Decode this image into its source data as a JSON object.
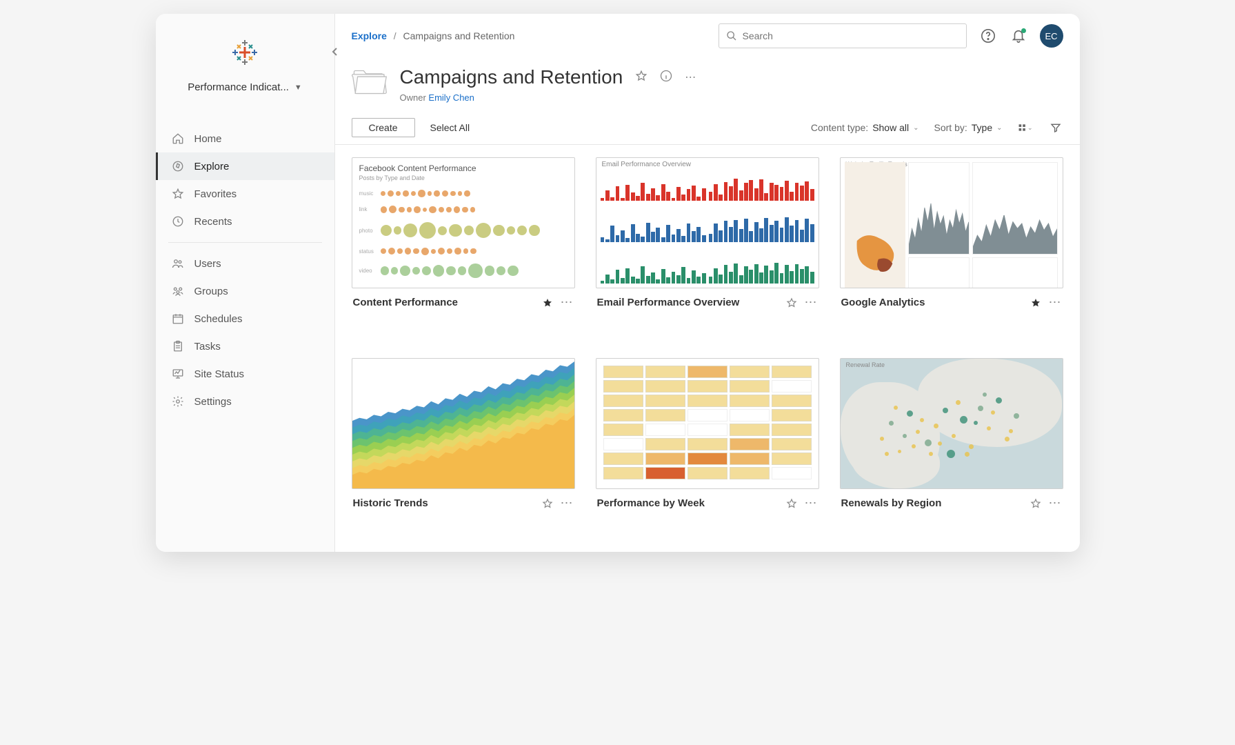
{
  "sidebar": {
    "project_label": "Performance Indicat...",
    "nav": [
      {
        "label": "Home"
      },
      {
        "label": "Explore"
      },
      {
        "label": "Favorites"
      },
      {
        "label": "Recents"
      }
    ],
    "admin": [
      {
        "label": "Users"
      },
      {
        "label": "Groups"
      },
      {
        "label": "Schedules"
      },
      {
        "label": "Tasks"
      },
      {
        "label": "Site Status"
      },
      {
        "label": "Settings"
      }
    ]
  },
  "topbar": {
    "breadcrumb_root": "Explore",
    "breadcrumb_current": "Campaigns and Retention",
    "search_placeholder": "Search",
    "avatar_initials": "EC"
  },
  "header": {
    "title": "Campaigns and Retention",
    "owner_label": "Owner",
    "owner_name": "Emily Chen"
  },
  "toolbar": {
    "create_label": "Create",
    "select_all_label": "Select All",
    "content_type_label": "Content type:",
    "content_type_value": "Show all",
    "sort_by_label": "Sort by:",
    "sort_by_value": "Type"
  },
  "cards": [
    {
      "title": "Content Performance",
      "starred": true
    },
    {
      "title": "Email Performance Overview",
      "starred": false
    },
    {
      "title": "Google Analytics",
      "starred": true
    },
    {
      "title": "Historic Trends",
      "starred": false
    },
    {
      "title": "Performance by Week",
      "starred": false
    },
    {
      "title": "Renewals by Region",
      "starred": false
    }
  ],
  "thumbs": {
    "content_performance": {
      "title": "Facebook Content Performance",
      "subtitle": "Posts by Type and Date",
      "row_labels": [
        "music",
        "link",
        "photo",
        "status",
        "video"
      ],
      "row_colors": [
        "#e08a3a",
        "#e08a3a",
        "#b8bb57",
        "#e08a3a",
        "#8fbf7a"
      ],
      "rows": [
        [
          4,
          6,
          3,
          5,
          4,
          7,
          3,
          5,
          6,
          4,
          3,
          5
        ],
        [
          6,
          8,
          5,
          4,
          6,
          3,
          7,
          5,
          4,
          6,
          5,
          4
        ],
        [
          14,
          8,
          18,
          22,
          10,
          16,
          12,
          20,
          14,
          9,
          11,
          13
        ],
        [
          5,
          7,
          4,
          6,
          5,
          8,
          3,
          7,
          5,
          6,
          4,
          5
        ],
        [
          9,
          7,
          12,
          8,
          10,
          14,
          11,
          9,
          18,
          12,
          10,
          13
        ]
      ]
    },
    "email_overview": {
      "header": "Email Performance Overview",
      "panel_colors": [
        "#d9342a",
        "#d9342a",
        "#2e6aa8",
        "#2e6aa8",
        "#2a8f6a",
        "#2a8f6a"
      ],
      "panel_bars": [
        [
          10,
          35,
          12,
          48,
          8,
          52,
          28,
          15,
          60,
          22,
          40,
          18,
          55,
          30,
          10,
          45,
          20,
          38,
          50,
          14,
          42
        ],
        [
          30,
          55,
          20,
          62,
          48,
          72,
          35,
          58,
          68,
          40,
          70,
          25,
          60,
          52,
          45,
          66,
          30,
          58,
          50,
          64,
          38
        ],
        [
          12,
          8,
          42,
          18,
          30,
          10,
          46,
          22,
          14,
          50,
          26,
          38,
          12,
          44,
          20,
          34,
          16,
          48,
          28,
          40,
          18
        ],
        [
          22,
          48,
          30,
          55,
          40,
          58,
          34,
          60,
          28,
          52,
          36,
          62,
          44,
          56,
          38,
          64,
          42,
          58,
          32,
          60,
          46
        ],
        [
          8,
          24,
          10,
          36,
          14,
          40,
          18,
          12,
          44,
          20,
          28,
          10,
          38,
          16,
          30,
          22,
          42,
          14,
          34,
          18,
          26
        ],
        [
          18,
          40,
          24,
          48,
          30,
          52,
          22,
          44,
          36,
          50,
          28,
          46,
          34,
          54,
          26,
          48,
          32,
          50,
          38,
          44,
          30
        ]
      ]
    },
    "google_analytics": {
      "header": "Website Traffic Trends",
      "area_color": "#6b7b82",
      "map_color": "#e38b2f",
      "spark_color": "#9aa0a4",
      "area1": [
        10,
        30,
        18,
        42,
        25,
        55,
        38,
        60,
        28,
        50,
        35,
        45,
        22,
        40,
        30,
        52,
        36,
        48,
        26,
        38
      ],
      "area2": [
        8,
        22,
        14,
        34,
        20,
        40,
        28,
        46,
        22,
        38,
        30,
        36,
        18,
        32,
        24,
        40,
        28,
        36,
        20,
        30
      ],
      "spark3": [
        20,
        45,
        15,
        55,
        30,
        62,
        25,
        50,
        40,
        58,
        22,
        48,
        35,
        52,
        28,
        44,
        38,
        56,
        30,
        46
      ],
      "spark4": [
        15,
        20,
        28,
        55,
        40,
        22,
        48,
        30,
        26,
        42,
        35,
        18,
        46,
        32,
        24,
        50,
        38,
        28,
        44,
        34
      ]
    },
    "historic_trends": {
      "type": "stacked-area",
      "colors_bottom_to_top": [
        "#f3b84a",
        "#f5cc5e",
        "#e9d86a",
        "#c7d95c",
        "#9ed04f",
        "#6fc46a",
        "#4fb58f",
        "#3ea3b8",
        "#3b8cc4"
      ],
      "base_curve": [
        18,
        22,
        20,
        26,
        24,
        30,
        28,
        34,
        32,
        38,
        36,
        44,
        40,
        48,
        46,
        54,
        50,
        58,
        56,
        64,
        60,
        68,
        66,
        74,
        72,
        80,
        78,
        86,
        84,
        92,
        90,
        98
      ],
      "layer_thickness": 9
    },
    "perf_by_week": {
      "type": "heatmap",
      "palette": {
        "0": "#ffffff",
        "1": "#f3dd9a",
        "2": "#eeb86a",
        "3": "#e3893d",
        "4": "#d8602f"
      },
      "cells": [
        [
          1,
          1,
          2,
          1,
          1
        ],
        [
          1,
          1,
          1,
          1,
          0
        ],
        [
          1,
          1,
          1,
          1,
          1
        ],
        [
          1,
          1,
          0,
          0,
          1
        ],
        [
          1,
          0,
          0,
          1,
          1
        ],
        [
          0,
          1,
          1,
          2,
          1
        ],
        [
          1,
          2,
          3,
          2,
          1
        ],
        [
          1,
          4,
          1,
          1,
          0
        ]
      ]
    },
    "renewals_by_region": {
      "header": "Renewal Rate",
      "sea_color": "#c9d9dc",
      "land_color": "#e6e6e1",
      "dot_colors": [
        "#e8c24a",
        "#7aa88b",
        "#3a8f76"
      ],
      "dots": [
        [
          18,
          60,
          6,
          0
        ],
        [
          22,
          48,
          7,
          1
        ],
        [
          26,
          70,
          5,
          0
        ],
        [
          30,
          40,
          9,
          2
        ],
        [
          34,
          55,
          6,
          0
        ],
        [
          38,
          62,
          10,
          1
        ],
        [
          42,
          50,
          7,
          0
        ],
        [
          46,
          38,
          8,
          2
        ],
        [
          50,
          58,
          6,
          0
        ],
        [
          54,
          44,
          11,
          2
        ],
        [
          58,
          66,
          7,
          0
        ],
        [
          62,
          36,
          8,
          1
        ],
        [
          66,
          52,
          6,
          0
        ],
        [
          70,
          30,
          9,
          2
        ],
        [
          74,
          60,
          7,
          0
        ],
        [
          78,
          42,
          8,
          1
        ],
        [
          48,
          70,
          12,
          2
        ],
        [
          40,
          72,
          6,
          0
        ],
        [
          56,
          72,
          7,
          0
        ],
        [
          64,
          26,
          6,
          1
        ],
        [
          28,
          58,
          6,
          1
        ],
        [
          36,
          46,
          6,
          0
        ],
        [
          44,
          64,
          6,
          0
        ],
        [
          52,
          32,
          7,
          0
        ],
        [
          60,
          48,
          6,
          2
        ],
        [
          68,
          40,
          6,
          0
        ],
        [
          76,
          54,
          6,
          0
        ],
        [
          32,
          66,
          6,
          0
        ],
        [
          24,
          36,
          6,
          0
        ],
        [
          20,
          72,
          6,
          0
        ]
      ]
    }
  }
}
